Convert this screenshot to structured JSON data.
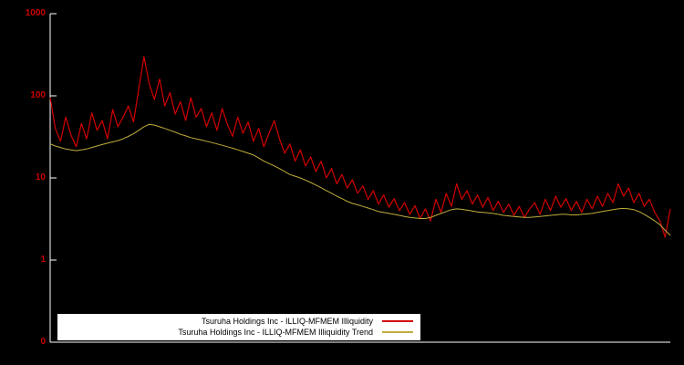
{
  "chart": {
    "background_color": "#000000",
    "axis_color": "#ffffff",
    "tick_label_color": "#cc0000",
    "legend_background": "#ffffff"
  },
  "chart_data": {
    "type": "line",
    "title": "",
    "xlabel": "",
    "ylabel": "",
    "yscale": "log",
    "yticks": [
      "1000",
      "100",
      "10",
      "1",
      "0"
    ],
    "ylim": [
      0.1,
      1000
    ],
    "grid": false,
    "legend_position": "bottom-center",
    "series": [
      {
        "name": "Tsuruha Holdings Inc - ILLIQ-MFMEM Illiquidity",
        "color": "#d40000",
        "values": [
          95,
          40,
          28,
          55,
          33,
          24,
          46,
          30,
          62,
          38,
          50,
          30,
          68,
          42,
          55,
          75,
          48,
          120,
          300,
          140,
          90,
          160,
          75,
          110,
          60,
          85,
          50,
          95,
          55,
          70,
          42,
          62,
          38,
          70,
          45,
          32,
          55,
          35,
          48,
          28,
          40,
          24,
          35,
          50,
          30,
          20,
          26,
          16,
          22,
          14,
          18,
          12,
          16,
          10,
          13,
          8.5,
          11,
          7.5,
          9.5,
          6.5,
          8,
          5.5,
          7,
          4.8,
          6.2,
          4.4,
          5.6,
          4,
          5,
          3.6,
          4.6,
          3.2,
          4.2,
          3,
          5.5,
          3.8,
          6.5,
          4.5,
          8.5,
          5.5,
          7,
          4.8,
          6.2,
          4.4,
          5.8,
          4,
          5.2,
          3.8,
          4.8,
          3.5,
          4.5,
          3.3,
          4.2,
          5,
          3.6,
          5.5,
          4,
          6,
          4.4,
          5.6,
          4,
          5.2,
          3.8,
          5.5,
          4.2,
          6,
          4.5,
          6.5,
          5,
          8.5,
          6,
          7.5,
          5,
          6.5,
          4.5,
          5.5,
          3.8,
          3,
          1.9,
          4.2
        ]
      },
      {
        "name": "Tsuruha Holdings Inc - ILLIQ-MFMEM Illiquidity Trend",
        "color": "#c0ad3c",
        "values": [
          26,
          24.5,
          23.5,
          22.5,
          22,
          21.5,
          22,
          22.5,
          23.5,
          24.5,
          25.5,
          26.5,
          27.5,
          28.5,
          30,
          32,
          34.5,
          38,
          42,
          45,
          44,
          42,
          40,
          38,
          36,
          34,
          32.5,
          31,
          30,
          29,
          28,
          27,
          26,
          25,
          24,
          23,
          22,
          21,
          20,
          19,
          17.5,
          16,
          15,
          14,
          13,
          12,
          11,
          10.5,
          10,
          9.4,
          8.8,
          8.2,
          7.6,
          7,
          6.5,
          6,
          5.6,
          5.2,
          4.9,
          4.7,
          4.5,
          4.3,
          4.1,
          3.9,
          3.8,
          3.7,
          3.6,
          3.5,
          3.4,
          3.3,
          3.25,
          3.2,
          3.2,
          3.3,
          3.5,
          3.7,
          3.9,
          4.1,
          4.2,
          4.15,
          4.05,
          3.95,
          3.85,
          3.8,
          3.75,
          3.7,
          3.6,
          3.5,
          3.45,
          3.4,
          3.35,
          3.3,
          3.3,
          3.35,
          3.4,
          3.45,
          3.5,
          3.55,
          3.6,
          3.6,
          3.55,
          3.55,
          3.6,
          3.65,
          3.7,
          3.8,
          3.9,
          4,
          4.1,
          4.2,
          4.25,
          4.2,
          4.1,
          3.9,
          3.6,
          3.3,
          3,
          2.7,
          2.3,
          2
        ]
      }
    ]
  }
}
